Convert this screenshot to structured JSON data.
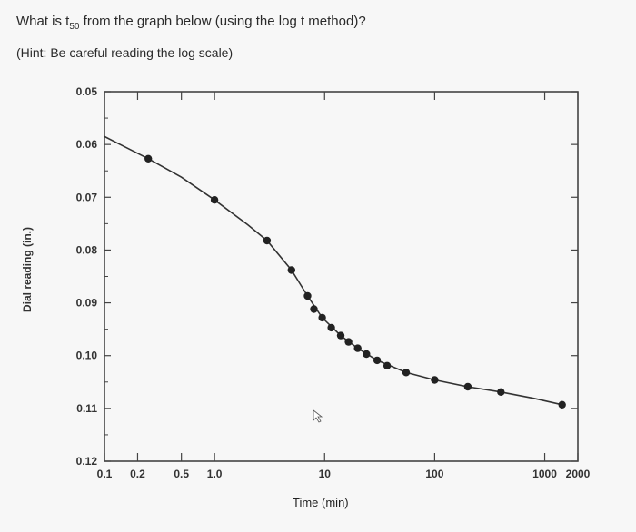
{
  "question": {
    "text_before": "What is t",
    "subscript": "50",
    "text_after": " from the graph below (using the log t method)?"
  },
  "hint": "(Hint: Be careful reading the log scale)",
  "chart_data": {
    "type": "line",
    "title": "",
    "xlabel": "Time (min)",
    "ylabel": "Dial reading (in.)",
    "x_scale": "log",
    "y_axis_inverted": true,
    "xlim": [
      0.1,
      2000
    ],
    "ylim": [
      0.05,
      0.12
    ],
    "x_tick_labels": [
      {
        "x": 0.1,
        "label": "0.1"
      },
      {
        "x": 0.2,
        "label": "0.2"
      },
      {
        "x": 0.5,
        "label": "0.5"
      },
      {
        "x": 1.0,
        "label": "1.0"
      },
      {
        "x": 10,
        "label": "10"
      },
      {
        "x": 100,
        "label": "100"
      },
      {
        "x": 1000,
        "label": "1000"
      },
      {
        "x": 2000,
        "label": "2000"
      }
    ],
    "y_tick_labels": [
      {
        "y": 0.05,
        "label": "0.05"
      },
      {
        "y": 0.06,
        "label": "0.06"
      },
      {
        "y": 0.07,
        "label": "0.07"
      },
      {
        "y": 0.08,
        "label": "0.08"
      },
      {
        "y": 0.09,
        "label": "0.09"
      },
      {
        "y": 0.1,
        "label": "0.10"
      },
      {
        "y": 0.11,
        "label": "0.11"
      },
      {
        "y": 0.12,
        "label": "0.12"
      }
    ],
    "points": [
      {
        "x": 0.25,
        "y": 0.0627
      },
      {
        "x": 1.0,
        "y": 0.0705
      },
      {
        "x": 3,
        "y": 0.0782
      },
      {
        "x": 5,
        "y": 0.0838
      },
      {
        "x": 7,
        "y": 0.0887
      },
      {
        "x": 8,
        "y": 0.0912
      },
      {
        "x": 9.5,
        "y": 0.0928
      },
      {
        "x": 11.5,
        "y": 0.0947
      },
      {
        "x": 14,
        "y": 0.0962
      },
      {
        "x": 16.5,
        "y": 0.0974
      },
      {
        "x": 20,
        "y": 0.0986
      },
      {
        "x": 24,
        "y": 0.0997
      },
      {
        "x": 30,
        "y": 0.1009
      },
      {
        "x": 37,
        "y": 0.1019
      },
      {
        "x": 55,
        "y": 0.1032
      },
      {
        "x": 100,
        "y": 0.1046
      },
      {
        "x": 200,
        "y": 0.1059
      },
      {
        "x": 400,
        "y": 0.1069
      },
      {
        "x": 1440,
        "y": 0.1093
      }
    ],
    "curve": [
      {
        "x": 0.1,
        "y": 0.0585
      },
      {
        "x": 0.25,
        "y": 0.0627
      },
      {
        "x": 0.5,
        "y": 0.0662
      },
      {
        "x": 1.0,
        "y": 0.0705
      },
      {
        "x": 2,
        "y": 0.0752
      },
      {
        "x": 3,
        "y": 0.0782
      },
      {
        "x": 5,
        "y": 0.0838
      },
      {
        "x": 7,
        "y": 0.0887
      },
      {
        "x": 9.5,
        "y": 0.0928
      },
      {
        "x": 14,
        "y": 0.0962
      },
      {
        "x": 20,
        "y": 0.0986
      },
      {
        "x": 30,
        "y": 0.1009
      },
      {
        "x": 55,
        "y": 0.1032
      },
      {
        "x": 100,
        "y": 0.1046
      },
      {
        "x": 200,
        "y": 0.1059
      },
      {
        "x": 400,
        "y": 0.1069
      },
      {
        "x": 800,
        "y": 0.1081
      },
      {
        "x": 1440,
        "y": 0.1093
      }
    ],
    "colors": {
      "line": "#333333",
      "marker": "#222222",
      "frame": "#444444",
      "background": "#f7f7f7"
    },
    "grid": false
  }
}
